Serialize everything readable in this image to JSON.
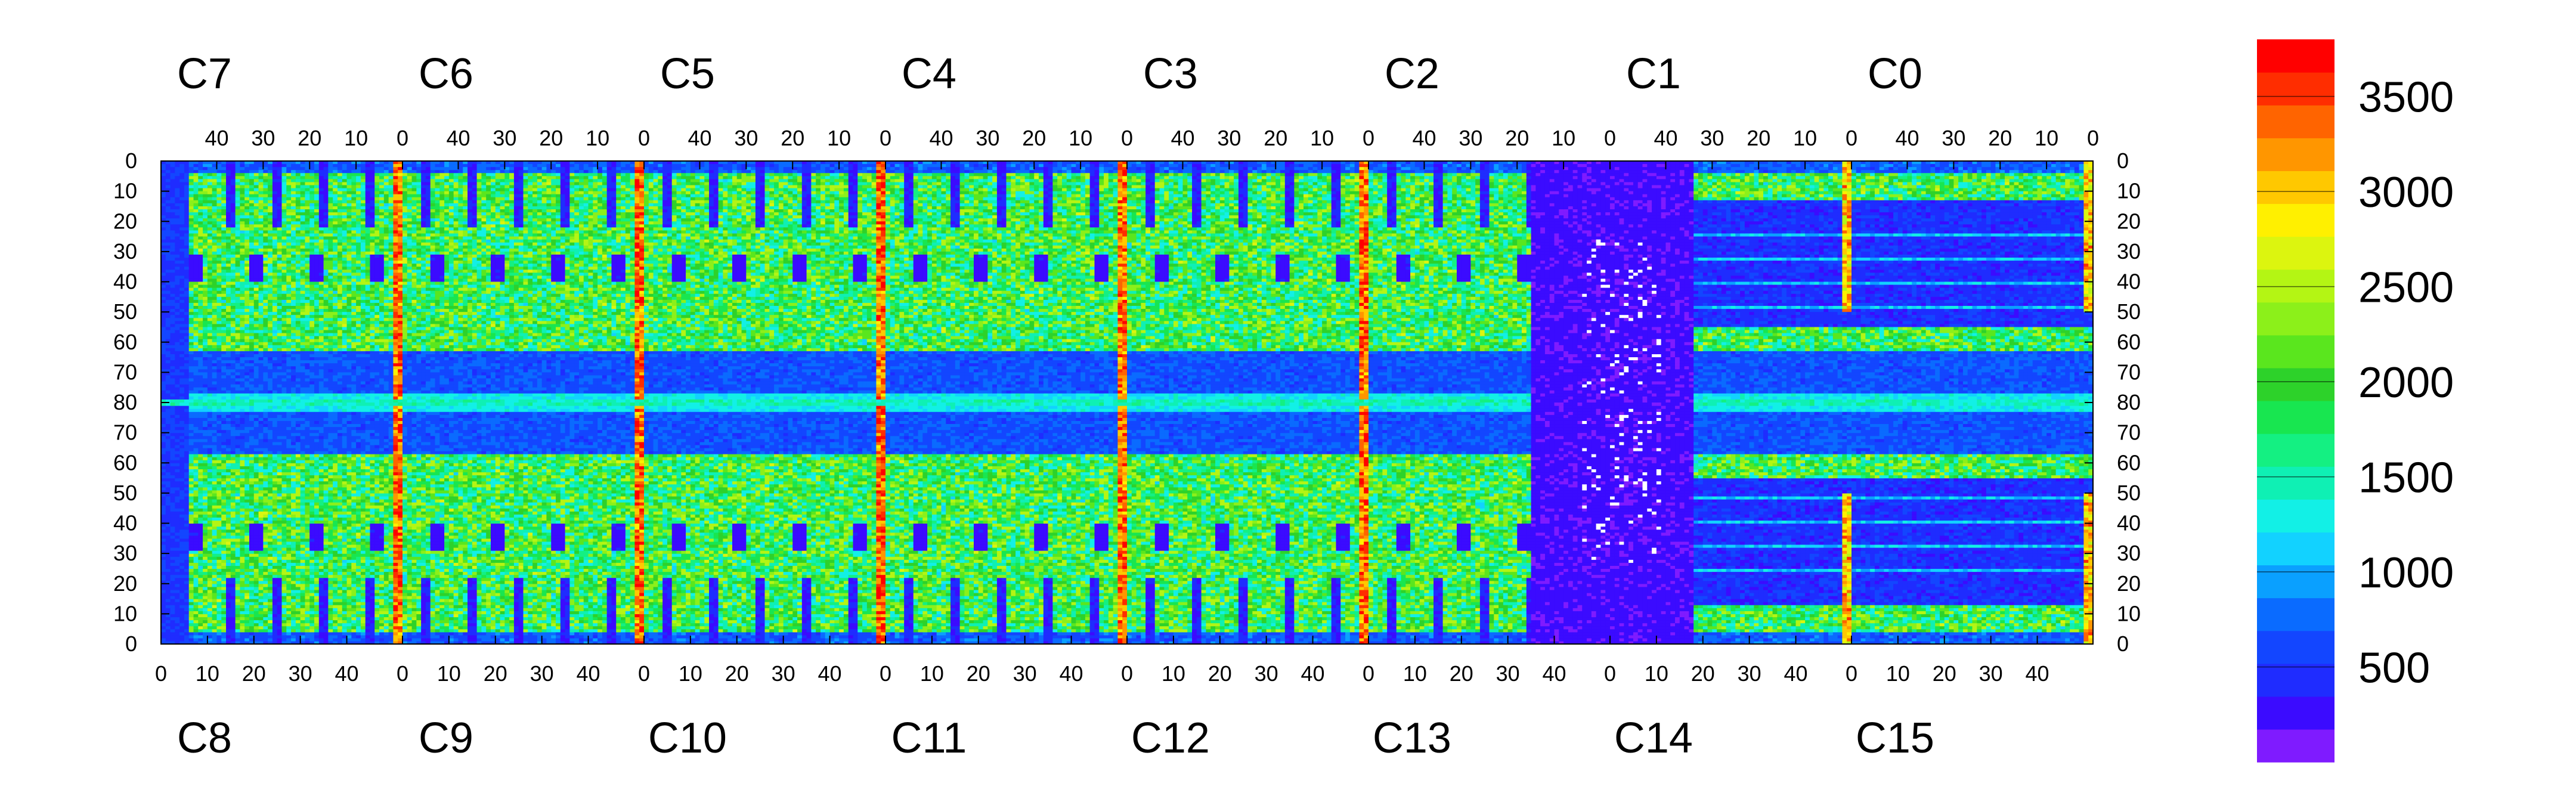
{
  "chart_data": {
    "type": "heatmap",
    "colormap": "rainbow (violet → blue → cyan → green → yellow → orange → red)",
    "top_chips": [
      "C7",
      "C6",
      "C5",
      "C4",
      "C3",
      "C2",
      "C1",
      "C0"
    ],
    "bottom_chips": [
      "C8",
      "C9",
      "C10",
      "C11",
      "C12",
      "C13",
      "C14",
      "C15"
    ],
    "top_axis_ticks": [
      "40",
      "30",
      "20",
      "10",
      "0"
    ],
    "bottom_axis_ticks": [
      "0",
      "10",
      "20",
      "30",
      "40"
    ],
    "left_axis_ticks": [
      "0",
      "10",
      "20",
      "30",
      "40",
      "50",
      "60",
      "70",
      "80",
      "70",
      "60",
      "50",
      "40",
      "30",
      "20",
      "10",
      "0"
    ],
    "right_axis_ticks": [
      "0",
      "10",
      "20",
      "30",
      "40",
      "50",
      "60",
      "70",
      "80",
      "70",
      "60",
      "50",
      "40",
      "30",
      "20",
      "10",
      "0"
    ],
    "columns_per_chip": 52,
    "rows_per_half": 80,
    "zlim": [
      0,
      3800
    ],
    "colorbar_ticks": [
      "500",
      "1000",
      "1500",
      "2000",
      "2500",
      "3000",
      "3500"
    ],
    "colorbar_values": [
      500,
      1000,
      1500,
      2000,
      2500,
      3000,
      3500
    ],
    "colorbar_palette": [
      "#7f1bff",
      "#3b0bff",
      "#1f2cff",
      "#1346ff",
      "#0a6bff",
      "#0aa0ff",
      "#12d2ff",
      "#12f0e6",
      "#0ff0b4",
      "#14f082",
      "#18e650",
      "#2dd22a",
      "#5ae61e",
      "#8cf01a",
      "#b4f514",
      "#dcf50f",
      "#fff000",
      "#ffc800",
      "#ff9600",
      "#ff6400",
      "#ff2d00",
      "#ff0000"
    ],
    "regions": {
      "background_level": "≈ 300–800",
      "central_inactive_region": "C13/C14 columns, ≈ 200 with scattered zero pixels",
      "hot_columns": "column 0 of each chip boundary, ≈ 3000–3800",
      "active_areas": "≈ 1200–2600"
    }
  }
}
